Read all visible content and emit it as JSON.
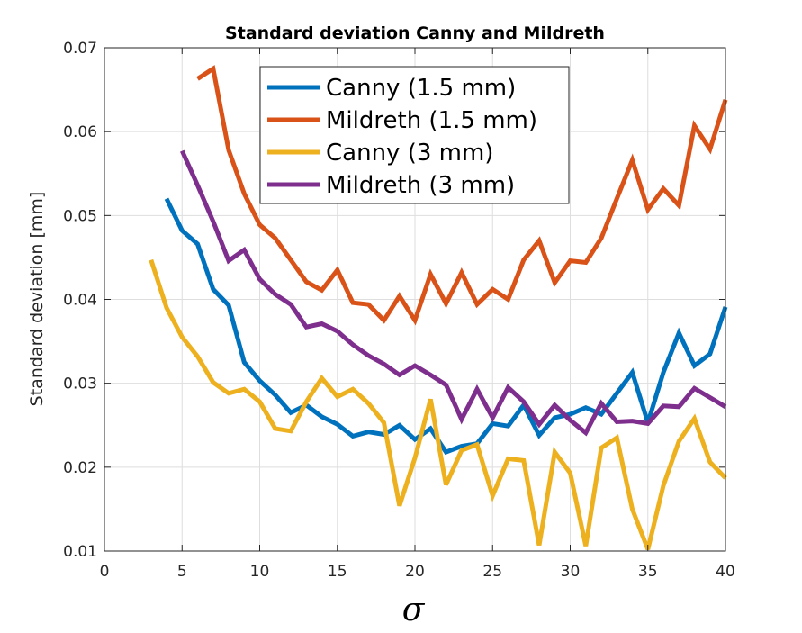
{
  "chart_data": {
    "type": "line",
    "title": "Standard deviation Canny and Mildreth",
    "xlabel": "σ",
    "ylabel": "Standard deviation [mm]",
    "xlim": [
      0,
      40
    ],
    "ylim": [
      0.01,
      0.07
    ],
    "xticks": [
      0,
      5,
      10,
      15,
      20,
      25,
      30,
      35,
      40
    ],
    "yticks": [
      0.01,
      0.02,
      0.03,
      0.04,
      0.05,
      0.06,
      0.07
    ],
    "ytick_labels": [
      "0.01",
      "0.02",
      "0.03",
      "0.04",
      "0.05",
      "0.06",
      "0.07"
    ],
    "grid": true,
    "legend_position": "top-center",
    "series": [
      {
        "name": "Canny (1.5 mm)",
        "color": "#0072BD",
        "x": [
          4,
          5,
          6,
          7,
          8,
          9,
          10,
          11,
          12,
          13,
          14,
          15,
          16,
          17,
          18,
          19,
          20,
          21,
          22,
          23,
          24,
          25,
          26,
          27,
          28,
          29,
          30,
          31,
          32,
          33,
          34,
          35,
          36,
          37,
          38,
          39,
          40
        ],
        "y": [
          0.052,
          0.0482,
          0.0466,
          0.0412,
          0.0393,
          0.0325,
          0.0303,
          0.0286,
          0.0265,
          0.0274,
          0.026,
          0.0251,
          0.0237,
          0.0242,
          0.0239,
          0.025,
          0.0233,
          0.0246,
          0.0218,
          0.0225,
          0.0228,
          0.0252,
          0.0249,
          0.0274,
          0.0238,
          0.0259,
          0.0263,
          0.0271,
          0.0263,
          0.0288,
          0.0313,
          0.0253,
          0.0313,
          0.036,
          0.0321,
          0.0335,
          0.0391
        ]
      },
      {
        "name": "Mildreth (1.5 mm)",
        "color": "#D95319",
        "x": [
          6,
          7,
          8,
          9,
          10,
          11,
          12,
          13,
          14,
          15,
          16,
          17,
          18,
          19,
          20,
          21,
          22,
          23,
          24,
          25,
          26,
          27,
          28,
          29,
          30,
          31,
          32,
          33,
          34,
          35,
          36,
          37,
          38,
          39,
          40
        ],
        "y": [
          0.0663,
          0.0675,
          0.0578,
          0.0526,
          0.0489,
          0.0473,
          0.0447,
          0.0421,
          0.0411,
          0.0435,
          0.0396,
          0.0394,
          0.0375,
          0.0404,
          0.0375,
          0.043,
          0.0395,
          0.0432,
          0.0394,
          0.0412,
          0.04,
          0.0447,
          0.047,
          0.042,
          0.0446,
          0.0444,
          0.0473,
          0.052,
          0.0566,
          0.0507,
          0.0532,
          0.0512,
          0.0607,
          0.0579,
          0.0638
        ]
      },
      {
        "name": "Canny (3 mm)",
        "color": "#EDB120",
        "x": [
          3,
          4,
          5,
          6,
          7,
          8,
          9,
          10,
          11,
          12,
          13,
          14,
          15,
          16,
          17,
          18,
          19,
          20,
          21,
          22,
          23,
          24,
          25,
          26,
          27,
          28,
          29,
          30,
          31,
          32,
          33,
          34,
          35,
          36,
          37,
          38,
          39,
          40
        ],
        "y": [
          0.0447,
          0.039,
          0.0355,
          0.0332,
          0.0301,
          0.0288,
          0.0293,
          0.0278,
          0.0246,
          0.0243,
          0.0278,
          0.0306,
          0.0284,
          0.0293,
          0.0276,
          0.0253,
          0.0154,
          0.0211,
          0.0281,
          0.0179,
          0.022,
          0.0227,
          0.0166,
          0.021,
          0.0208,
          0.0107,
          0.0218,
          0.0193,
          0.0106,
          0.0223,
          0.0235,
          0.015,
          0.0102,
          0.0178,
          0.0231,
          0.0258,
          0.0206,
          0.0187
        ]
      },
      {
        "name": "Mildreth (3 mm)",
        "color": "#7E2F8E",
        "x": [
          5,
          6,
          7,
          8,
          9,
          10,
          11,
          12,
          13,
          14,
          15,
          16,
          17,
          18,
          19,
          20,
          21,
          22,
          23,
          24,
          25,
          26,
          27,
          28,
          29,
          30,
          31,
          32,
          33,
          34,
          35,
          36,
          37,
          38,
          39,
          40
        ],
        "y": [
          0.0577,
          0.0536,
          0.0493,
          0.0446,
          0.0459,
          0.0424,
          0.0406,
          0.0394,
          0.0367,
          0.0371,
          0.0362,
          0.0346,
          0.0333,
          0.0323,
          0.031,
          0.0321,
          0.031,
          0.0298,
          0.0257,
          0.0293,
          0.0259,
          0.0295,
          0.0278,
          0.0251,
          0.0274,
          0.0256,
          0.0241,
          0.0276,
          0.0254,
          0.0255,
          0.0252,
          0.0273,
          0.0272,
          0.0294,
          0.0283,
          0.0272
        ]
      }
    ]
  }
}
